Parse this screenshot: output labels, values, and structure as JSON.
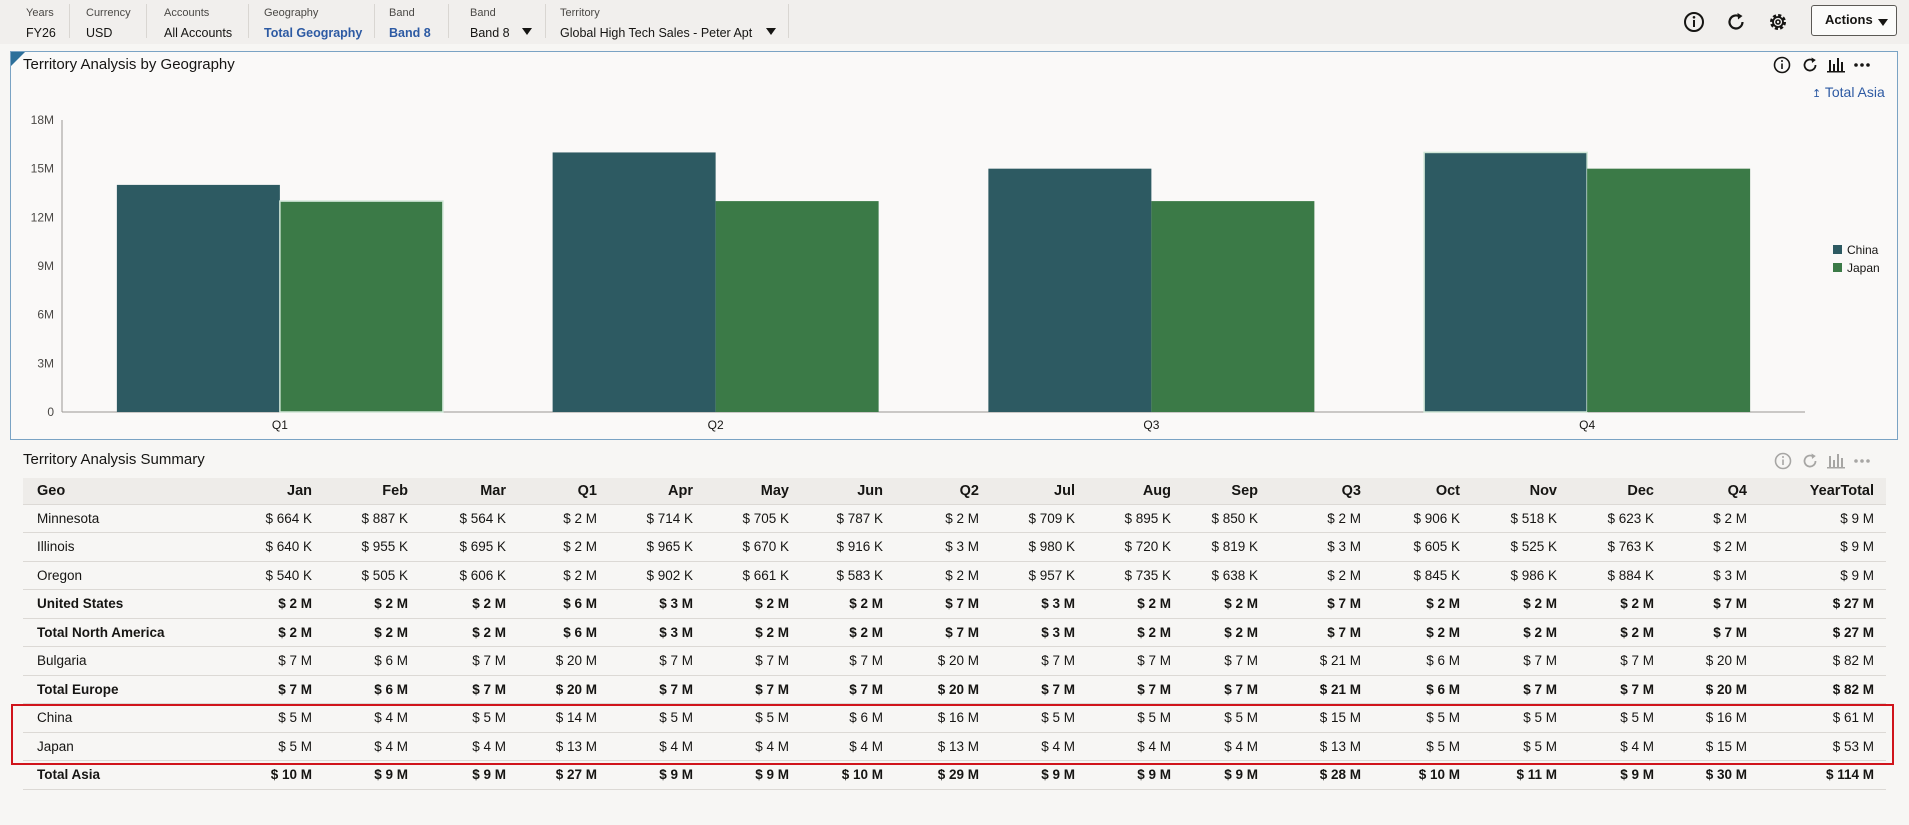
{
  "pov": [
    {
      "label": "Years",
      "value": "FY26",
      "link": false
    },
    {
      "label": "Currency",
      "value": "USD",
      "link": false
    },
    {
      "label": "Accounts",
      "value": "All Accounts",
      "link": false
    },
    {
      "label": "Geography",
      "value": "Total Geography",
      "link": true
    },
    {
      "label": "Band",
      "value": "Band 8",
      "link": true
    },
    {
      "label": "Band",
      "value": "Band 8",
      "link": false
    },
    {
      "label": "Territory",
      "value": "Global High Tech Sales - Peter Apt",
      "link": false
    }
  ],
  "header": {
    "actions_label": "Actions"
  },
  "chart_panel": {
    "title": "Territory Analysis by Geography",
    "drill_up_label": "Total Asia"
  },
  "chart_data": {
    "type": "bar",
    "title": "Territory Analysis by Geography",
    "categories": [
      "Q1",
      "Q2",
      "Q3",
      "Q4"
    ],
    "series": [
      {
        "name": "China",
        "values": [
          14000000,
          16000000,
          15000000,
          16000000
        ],
        "color": "#2d5a62"
      },
      {
        "name": "Japan",
        "values": [
          13000000,
          13000000,
          13000000,
          15000000
        ],
        "color": "#3b7a47"
      }
    ],
    "ylim": [
      0,
      18000000
    ],
    "yticks": [
      "0",
      "3M",
      "6M",
      "9M",
      "12M",
      "15M",
      "18M"
    ],
    "ytick_values": [
      0,
      3000000,
      6000000,
      9000000,
      12000000,
      15000000,
      18000000
    ],
    "legend": "right",
    "grid": false
  },
  "summary": {
    "title": "Territory Analysis Summary",
    "columns": [
      "Geo",
      "Jan",
      "Feb",
      "Mar",
      "Q1",
      "Apr",
      "May",
      "Jun",
      "Q2",
      "Jul",
      "Aug",
      "Sep",
      "Q3",
      "Oct",
      "Nov",
      "Dec",
      "Q4",
      "YearTotal"
    ],
    "rows": [
      {
        "bold": false,
        "cells": [
          "Minnesota",
          "$ 664 K",
          "$ 887 K",
          "$ 564 K",
          "$ 2 M",
          "$ 714 K",
          "$ 705 K",
          "$ 787 K",
          "$ 2 M",
          "$ 709 K",
          "$ 895 K",
          "$ 850 K",
          "$ 2 M",
          "$ 906 K",
          "$ 518 K",
          "$ 623 K",
          "$ 2 M",
          "$ 9 M"
        ]
      },
      {
        "bold": false,
        "cells": [
          "Illinois",
          "$ 640 K",
          "$ 955 K",
          "$ 695 K",
          "$ 2 M",
          "$ 965 K",
          "$ 670 K",
          "$ 916 K",
          "$ 3 M",
          "$ 980 K",
          "$ 720 K",
          "$ 819 K",
          "$ 3 M",
          "$ 605 K",
          "$ 525 K",
          "$ 763 K",
          "$ 2 M",
          "$ 9 M"
        ]
      },
      {
        "bold": false,
        "cells": [
          "Oregon",
          "$ 540 K",
          "$ 505 K",
          "$ 606 K",
          "$ 2 M",
          "$ 902 K",
          "$ 661 K",
          "$ 583 K",
          "$ 2 M",
          "$ 957 K",
          "$ 735 K",
          "$ 638 K",
          "$ 2 M",
          "$ 845 K",
          "$ 986 K",
          "$ 884 K",
          "$ 3 M",
          "$ 9 M"
        ]
      },
      {
        "bold": true,
        "cells": [
          "United States",
          "$ 2 M",
          "$ 2 M",
          "$ 2 M",
          "$ 6 M",
          "$ 3 M",
          "$ 2 M",
          "$ 2 M",
          "$ 7 M",
          "$ 3 M",
          "$ 2 M",
          "$ 2 M",
          "$ 7 M",
          "$ 2 M",
          "$ 2 M",
          "$ 2 M",
          "$ 7 M",
          "$ 27 M"
        ]
      },
      {
        "bold": true,
        "cells": [
          "Total North America",
          "$ 2 M",
          "$ 2 M",
          "$ 2 M",
          "$ 6 M",
          "$ 3 M",
          "$ 2 M",
          "$ 2 M",
          "$ 7 M",
          "$ 3 M",
          "$ 2 M",
          "$ 2 M",
          "$ 7 M",
          "$ 2 M",
          "$ 2 M",
          "$ 2 M",
          "$ 7 M",
          "$ 27 M"
        ]
      },
      {
        "bold": false,
        "cells": [
          "Bulgaria",
          "$ 7 M",
          "$ 6 M",
          "$ 7 M",
          "$ 20 M",
          "$ 7 M",
          "$ 7 M",
          "$ 7 M",
          "$ 20 M",
          "$ 7 M",
          "$ 7 M",
          "$ 7 M",
          "$ 21 M",
          "$ 6 M",
          "$ 7 M",
          "$ 7 M",
          "$ 20 M",
          "$ 82 M"
        ]
      },
      {
        "bold": true,
        "cells": [
          "Total Europe",
          "$ 7 M",
          "$ 6 M",
          "$ 7 M",
          "$ 20 M",
          "$ 7 M",
          "$ 7 M",
          "$ 7 M",
          "$ 20 M",
          "$ 7 M",
          "$ 7 M",
          "$ 7 M",
          "$ 21 M",
          "$ 6 M",
          "$ 7 M",
          "$ 7 M",
          "$ 20 M",
          "$ 82 M"
        ]
      },
      {
        "bold": false,
        "cells": [
          "China",
          "$ 5 M",
          "$ 4 M",
          "$ 5 M",
          "$ 14 M",
          "$ 5 M",
          "$ 5 M",
          "$ 6 M",
          "$ 16 M",
          "$ 5 M",
          "$ 5 M",
          "$ 5 M",
          "$ 15 M",
          "$ 5 M",
          "$ 5 M",
          "$ 5 M",
          "$ 16 M",
          "$ 61 M"
        ]
      },
      {
        "bold": false,
        "cells": [
          "Japan",
          "$ 5 M",
          "$ 4 M",
          "$ 4 M",
          "$ 13 M",
          "$ 4 M",
          "$ 4 M",
          "$ 4 M",
          "$ 13 M",
          "$ 4 M",
          "$ 4 M",
          "$ 4 M",
          "$ 13 M",
          "$ 5 M",
          "$ 5 M",
          "$ 4 M",
          "$ 15 M",
          "$ 53 M"
        ]
      },
      {
        "bold": true,
        "cells": [
          "Total Asia",
          "$ 10 M",
          "$ 9 M",
          "$ 9 M",
          "$ 27 M",
          "$ 9 M",
          "$ 9 M",
          "$ 10 M",
          "$ 29 M",
          "$ 9 M",
          "$ 9 M",
          "$ 9 M",
          "$ 28 M",
          "$ 10 M",
          "$ 11 M",
          "$ 9 M",
          "$ 30 M",
          "$ 114 M"
        ]
      }
    ]
  }
}
